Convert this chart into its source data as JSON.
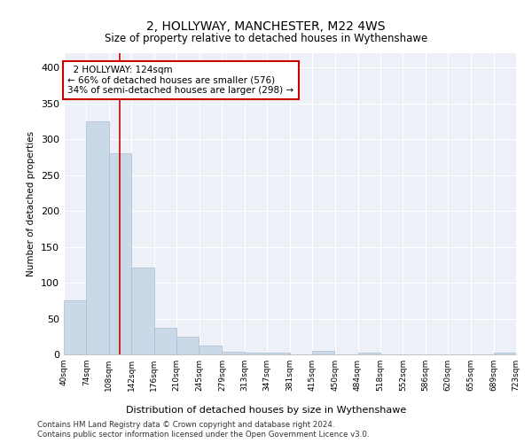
{
  "title": "2, HOLLYWAY, MANCHESTER, M22 4WS",
  "subtitle": "Size of property relative to detached houses in Wythenshawe",
  "xlabel": "Distribution of detached houses by size in Wythenshawe",
  "ylabel": "Number of detached properties",
  "footer_line1": "Contains HM Land Registry data © Crown copyright and database right 2024.",
  "footer_line2": "Contains public sector information licensed under the Open Government Licence v3.0.",
  "annotation_line1": "  2 HOLLYWAY: 124sqm",
  "annotation_line2": "← 66% of detached houses are smaller (576)",
  "annotation_line3": "34% of semi-detached houses are larger (298) →",
  "property_size": 124,
  "bin_edges": [
    40,
    74,
    108,
    142,
    176,
    210,
    245,
    279,
    313,
    347,
    381,
    415,
    450,
    484,
    518,
    552,
    586,
    620,
    655,
    689,
    723
  ],
  "bar_heights": [
    75,
    325,
    280,
    121,
    37,
    25,
    12,
    4,
    2,
    2,
    0,
    5,
    0,
    3,
    0,
    0,
    0,
    0,
    0,
    3
  ],
  "bar_color": "#cad9e8",
  "bar_edge_color": "#aabcce",
  "red_line_color": "#cc0000",
  "annotation_box_color": "#cc0000",
  "background_color": "#edf1f7",
  "ylim": [
    0,
    420
  ],
  "yticks": [
    0,
    50,
    100,
    150,
    200,
    250,
    300,
    350,
    400
  ]
}
